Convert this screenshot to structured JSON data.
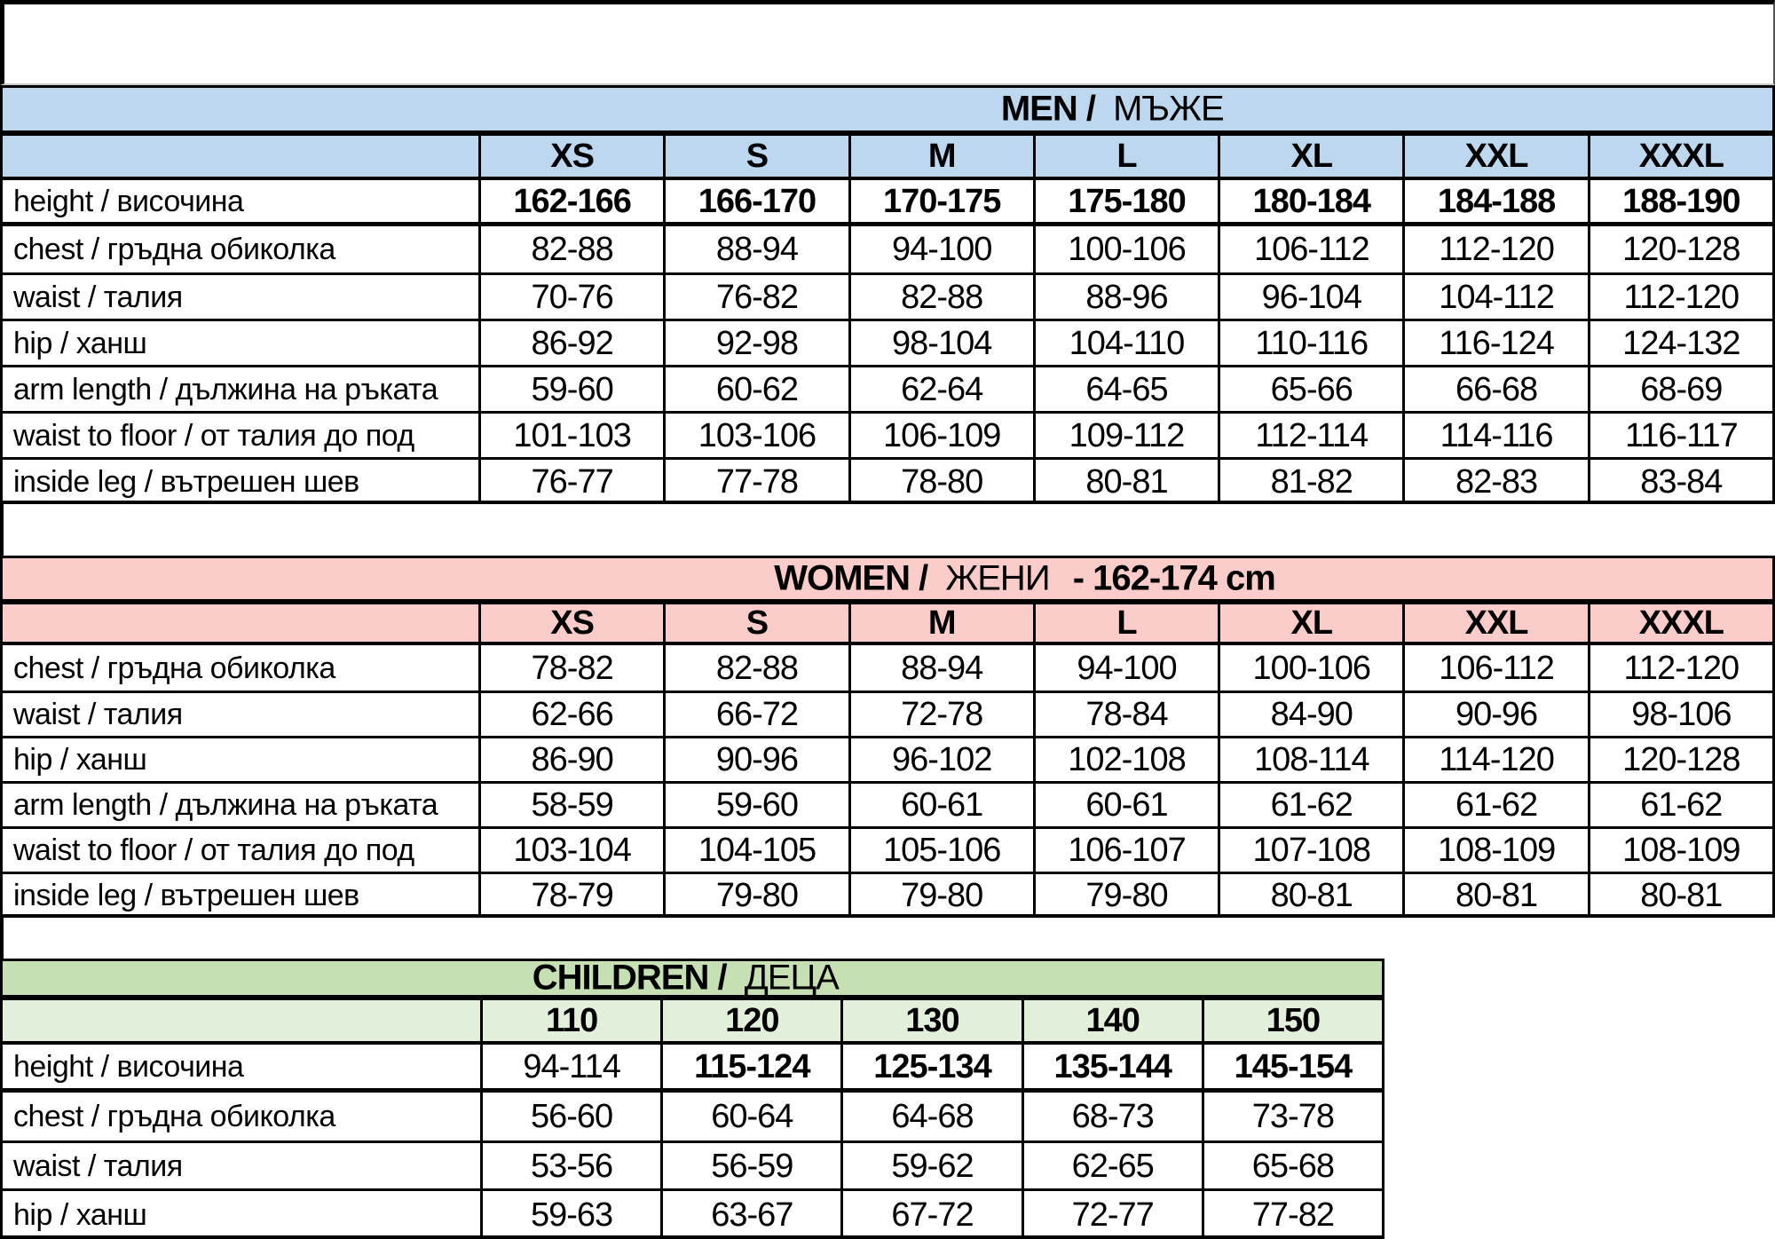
{
  "colors": {
    "men_header_bg": "#bdd7ee",
    "women_header_bg": "#fcccca",
    "children_header_bg": "#c6e0b4",
    "children_size_row_bg": "#e2efda",
    "border": "#000000"
  },
  "men": {
    "title_bold": "MEN /",
    "title_regular": "МЪЖЕ",
    "sizes": [
      "XS",
      "S",
      "M",
      "L",
      "XL",
      "XXL",
      "XXXL"
    ],
    "rows": [
      {
        "label": "height / височина",
        "values": [
          "162-166",
          "166-170",
          "170-175",
          "175-180",
          "180-184",
          "184-188",
          "188-190"
        ]
      },
      {
        "label": "chest / гръдна обиколка",
        "values": [
          "82-88",
          "88-94",
          "94-100",
          "100-106",
          "106-112",
          "112-120",
          "120-128"
        ]
      },
      {
        "label": "waist / талия",
        "values": [
          "70-76",
          "76-82",
          "82-88",
          "88-96",
          "96-104",
          "104-112",
          "112-120"
        ]
      },
      {
        "label": "hip / ханш",
        "values": [
          "86-92",
          "92-98",
          "98-104",
          "104-110",
          "110-116",
          "116-124",
          "124-132"
        ]
      },
      {
        "label": "arm length / дължина на ръката",
        "values": [
          "59-60",
          "60-62",
          "62-64",
          "64-65",
          "65-66",
          "66-68",
          "68-69"
        ]
      },
      {
        "label": "waist to floor / от талия до под",
        "values": [
          "101-103",
          "103-106",
          "106-109",
          "109-112",
          "112-114",
          "114-116",
          "116-117"
        ]
      },
      {
        "label": "inside leg / вътрешен шев",
        "values": [
          "76-77",
          "77-78",
          "78-80",
          "80-81",
          "81-82",
          "82-83",
          "83-84"
        ]
      }
    ]
  },
  "women": {
    "title_bold": "WOMEN /",
    "title_regular": "ЖЕНИ",
    "title_suffix": "- 162-174 cm",
    "sizes": [
      "XS",
      "S",
      "M",
      "L",
      "XL",
      "XXL",
      "XXXL"
    ],
    "rows": [
      {
        "label": "chest / гръдна обиколка",
        "values": [
          "78-82",
          "82-88",
          "88-94",
          "94-100",
          "100-106",
          "106-112",
          "112-120"
        ]
      },
      {
        "label": "waist / талия",
        "values": [
          "62-66",
          "66-72",
          "72-78",
          "78-84",
          "84-90",
          "90-96",
          "98-106"
        ]
      },
      {
        "label": "hip / ханш",
        "values": [
          "86-90",
          "90-96",
          "96-102",
          "102-108",
          "108-114",
          "114-120",
          "120-128"
        ]
      },
      {
        "label": "arm length / дължина на ръката",
        "values": [
          "58-59",
          "59-60",
          "60-61",
          "60-61",
          "61-62",
          "61-62",
          "61-62"
        ]
      },
      {
        "label": "waist to floor / от талия до под",
        "values": [
          "103-104",
          "104-105",
          "105-106",
          "106-107",
          "107-108",
          "108-109",
          "108-109"
        ]
      },
      {
        "label": "inside leg / вътрешен шев",
        "values": [
          "78-79",
          "79-80",
          "79-80",
          "79-80",
          "80-81",
          "80-81",
          "80-81"
        ]
      }
    ]
  },
  "children": {
    "title_bold": "CHILDREN /",
    "title_regular": "ДЕЦА",
    "sizes": [
      "110",
      "120",
      "130",
      "140",
      "150"
    ],
    "rows": [
      {
        "label": "height / височина",
        "values": [
          "94-114",
          "115-124",
          "125-134",
          "135-144",
          "145-154"
        ]
      },
      {
        "label": "chest / гръдна обиколка",
        "values": [
          "56-60",
          "60-64",
          "64-68",
          "68-73",
          "73-78"
        ]
      },
      {
        "label": "waist / талия",
        "values": [
          "53-56",
          "56-59",
          "59-62",
          "62-65",
          "65-68"
        ]
      },
      {
        "label": "hip / ханш",
        "values": [
          "59-63",
          "63-67",
          "67-72",
          "72-77",
          "77-82"
        ]
      }
    ]
  }
}
